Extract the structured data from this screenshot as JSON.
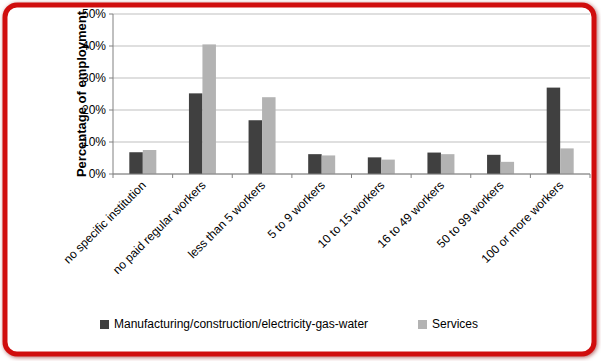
{
  "chart_data": {
    "type": "bar",
    "y_label": "Percentage of employment",
    "categories": [
      "no specific institution",
      "no paid regular workers",
      "less than 5 workers",
      "5 to 9 workers",
      "10 to 15 workers",
      "16 to 49 workers",
      "50 to 99 workers",
      "100 or more workers"
    ],
    "series": [
      {
        "name": "Manufacturing/construction/electricity-gas-water",
        "color": "#404040",
        "values": [
          6.8,
          25.2,
          16.8,
          6.2,
          5.2,
          6.7,
          6.0,
          27.0
        ]
      },
      {
        "name": "Services",
        "color": "#b3b3b3",
        "values": [
          7.5,
          40.5,
          24.0,
          5.8,
          4.5,
          6.2,
          3.8,
          8.0
        ]
      }
    ],
    "ylim": [
      0,
      50
    ],
    "yticks": [
      {
        "value": 0,
        "label": "0%"
      },
      {
        "value": 10,
        "label": "10%"
      },
      {
        "value": 20,
        "label": "20%"
      },
      {
        "value": 30,
        "label": "30%"
      },
      {
        "value": 40,
        "label": "40%"
      },
      {
        "value": 50,
        "label": "50%"
      }
    ],
    "grid": true,
    "legend": "bottom"
  }
}
